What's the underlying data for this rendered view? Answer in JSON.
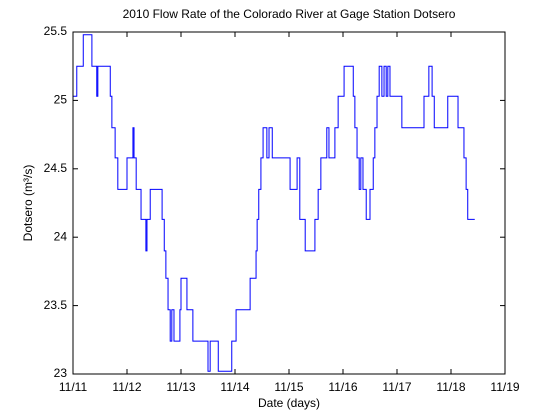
{
  "chart_data": {
    "type": "line",
    "title": "2010 Flow Rate of the Colorado River at Gage Station Dotsero",
    "xlabel": "Date (days)",
    "ylabel": "Dotsero (m³/s)",
    "drawstyle": "steps-post",
    "xlim": [
      11,
      19
    ],
    "ylim": [
      23,
      25.5
    ],
    "xticks": [
      {
        "value": 11,
        "label": "11/11"
      },
      {
        "value": 12,
        "label": "11/12"
      },
      {
        "value": 13,
        "label": "11/13"
      },
      {
        "value": 14,
        "label": "11/14"
      },
      {
        "value": 15,
        "label": "11/15"
      },
      {
        "value": 16,
        "label": "11/16"
      },
      {
        "value": 17,
        "label": "11/17"
      },
      {
        "value": 18,
        "label": "11/18"
      },
      {
        "value": 19,
        "label": "11/19"
      }
    ],
    "yticks": [
      23,
      23.5,
      24,
      24.5,
      25,
      25.5
    ],
    "x": [
      11.0,
      11.07,
      11.19,
      11.35,
      11.44,
      11.46,
      11.69,
      11.72,
      11.78,
      11.83,
      12.0,
      12.11,
      12.13,
      12.17,
      12.26,
      12.35,
      12.37,
      12.43,
      12.65,
      12.69,
      12.72,
      12.76,
      12.8,
      12.83,
      12.87,
      12.98,
      13.0,
      13.11,
      13.22,
      13.5,
      13.54,
      13.69,
      13.94,
      14.02,
      14.28,
      14.39,
      14.41,
      14.44,
      14.48,
      14.52,
      14.59,
      14.63,
      14.69,
      15.02,
      15.15,
      15.2,
      15.3,
      15.48,
      15.54,
      15.59,
      15.7,
      15.74,
      15.85,
      15.91,
      16.02,
      16.19,
      16.22,
      16.26,
      16.3,
      16.33,
      16.37,
      16.43,
      16.5,
      16.56,
      16.59,
      16.63,
      16.67,
      16.72,
      16.76,
      16.8,
      16.83,
      16.87,
      17.09,
      17.5,
      17.59,
      17.65,
      17.69,
      17.94,
      18.13,
      18.24,
      18.28,
      18.31,
      18.44
    ],
    "series": [
      {
        "name": "Dotsero",
        "color": "#0000ff",
        "values": [
          25.03,
          25.25,
          25.48,
          25.25,
          25.03,
          25.25,
          25.03,
          24.8,
          24.58,
          24.35,
          24.58,
          24.8,
          24.58,
          24.35,
          24.13,
          23.9,
          24.13,
          24.35,
          24.13,
          23.9,
          23.7,
          23.47,
          23.24,
          23.47,
          23.24,
          23.47,
          23.7,
          23.47,
          23.24,
          23.02,
          23.24,
          23.02,
          23.24,
          23.47,
          23.7,
          23.9,
          24.13,
          24.35,
          24.58,
          24.8,
          24.58,
          24.8,
          24.58,
          24.35,
          24.58,
          24.13,
          23.9,
          24.13,
          24.35,
          24.58,
          24.8,
          24.58,
          24.8,
          25.03,
          25.25,
          25.03,
          24.8,
          24.58,
          24.35,
          24.58,
          24.35,
          24.13,
          24.35,
          24.58,
          24.8,
          25.03,
          25.25,
          25.03,
          25.25,
          25.03,
          25.25,
          25.03,
          24.8,
          25.03,
          25.25,
          25.03,
          24.8,
          25.03,
          24.8,
          24.58,
          24.35,
          24.13,
          24.13
        ]
      }
    ]
  }
}
